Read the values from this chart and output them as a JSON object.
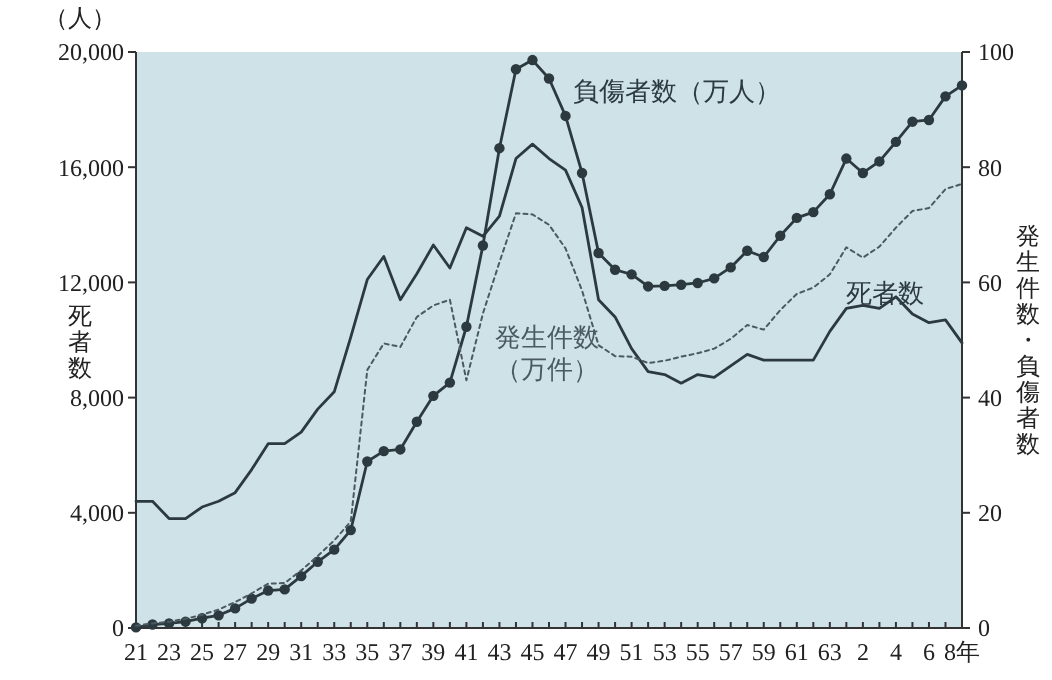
{
  "chart_data": {
    "type": "line",
    "categories": [
      "21",
      null,
      "23",
      null,
      "25",
      null,
      "27",
      null,
      "29",
      null,
      "31",
      null,
      "33",
      null,
      "35",
      null,
      "37",
      null,
      "39",
      null,
      "41",
      null,
      "43",
      null,
      "45",
      null,
      "47",
      null,
      "49",
      null,
      "51",
      null,
      "53",
      null,
      "55",
      null,
      "57",
      null,
      "59",
      null,
      "61",
      null,
      "63",
      null,
      "2",
      null,
      "4",
      null,
      "6",
      null,
      "8年"
    ],
    "ylabel": "死者数",
    "y2label": "発生件数・負傷者数",
    "annotations": [
      "（人）"
    ],
    "ylim": [
      0,
      20000
    ],
    "yticks": [
      0,
      {
        "value": 4000,
        "label": "4,000"
      },
      {
        "value": 8000,
        "label": "8,000"
      },
      {
        "value": 12000,
        "label": "12,000"
      },
      {
        "value": 16000,
        "label": "16,000"
      },
      {
        "value": 20000,
        "label": "20,000"
      }
    ],
    "y2lim": [
      0,
      100
    ],
    "y2ticks": [
      0,
      20,
      40,
      60,
      80,
      100
    ],
    "grid": false,
    "series": [
      {
        "name": "死者数",
        "color": "#2c3a40",
        "marker": "none",
        "line_style": "solid",
        "values": [
          4400,
          4400,
          3800,
          3800,
          4200,
          4400,
          4700,
          5500,
          6400,
          6400,
          6800,
          7600,
          8200,
          10100,
          12100,
          12900,
          11400,
          12300,
          13300,
          12500,
          13900,
          13600,
          14300,
          16300,
          16800,
          16300,
          15900,
          14600,
          11400,
          10800,
          9700,
          8900,
          8800,
          8500,
          8800,
          8700,
          9100,
          9500,
          9300,
          9300,
          9300,
          9300,
          10300,
          11100,
          11200,
          11100,
          11500,
          10900,
          10600,
          10700,
          9900
        ]
      },
      {
        "name": "負傷者数（万人）",
        "color": "#2c3a40",
        "marker": "circle",
        "line_style": "solid",
        "axis": "y2",
        "values": [
          0.1,
          0.6,
          0.8,
          1.1,
          1.7,
          2.2,
          3.4,
          5.1,
          6.5,
          6.7,
          9.0,
          11.5,
          13.6,
          17.0,
          28.9,
          30.7,
          31.0,
          35.8,
          40.3,
          42.6,
          52.3,
          66.4,
          83.3,
          97.0,
          98.6,
          95.4,
          88.9,
          79.0,
          65.1,
          62.2,
          61.4,
          59.3,
          59.4,
          59.6,
          59.9,
          60.7,
          62.6,
          65.5,
          64.4,
          68.1,
          71.2,
          72.2,
          75.3,
          81.5,
          79.0,
          81.0,
          84.4,
          87.9,
          88.2,
          92.3,
          94.2
        ]
      },
      {
        "name": "発生件数（万件）",
        "color": "#4a5a60",
        "marker": "none",
        "line_style": "dotted",
        "axis": "y2",
        "values": [
          0.4,
          0.8,
          1.1,
          1.6,
          2.3,
          3.2,
          4.5,
          6.0,
          7.7,
          7.8,
          10.0,
          12.5,
          15.2,
          18.5,
          44.8,
          49.4,
          48.8,
          54.0,
          56.0,
          57.0,
          43.0,
          54.6,
          63.5,
          72.0,
          71.8,
          70.0,
          65.9,
          58.6,
          49.1,
          47.2,
          47.1,
          46.0,
          46.4,
          47.1,
          47.7,
          48.5,
          50.2,
          52.6,
          51.8,
          55.2,
          58.0,
          59.1,
          61.4,
          66.1,
          64.3,
          66.2,
          69.5,
          72.4,
          72.9,
          76.2,
          77.1
        ]
      }
    ]
  }
}
